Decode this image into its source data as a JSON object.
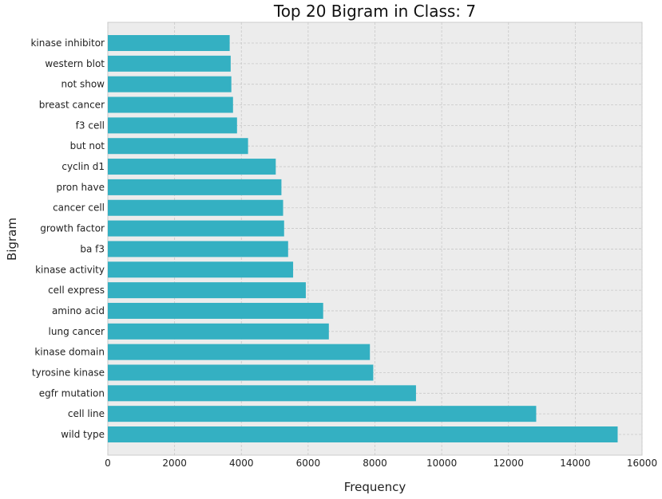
{
  "chart_data": {
    "type": "bar",
    "orientation": "horizontal",
    "title": "Top 20 Bigram in Class: 7",
    "xlabel": "Frequency",
    "ylabel": "Bigram",
    "xlim": [
      0,
      16000
    ],
    "xticks": [
      0,
      2000,
      4000,
      6000,
      8000,
      10000,
      12000,
      14000,
      16000
    ],
    "grid": true,
    "bar_color": "#34b0c2",
    "background_color": "#ececec",
    "grid_color": "#c8c8c8",
    "categories": [
      "kinase inhibitor",
      "western blot",
      "not show",
      "breast cancer",
      "f3 cell",
      "but not",
      "cyclin d1",
      "pron have",
      "cancer cell",
      "growth factor",
      "ba f3",
      "kinase activity",
      "cell express",
      "amino acid",
      "lung cancer",
      "kinase domain",
      "tyrosine kinase",
      "egfr mutation",
      "cell line",
      "wild type"
    ],
    "values": [
      3650,
      3680,
      3700,
      3750,
      3870,
      4200,
      5030,
      5200,
      5250,
      5280,
      5400,
      5550,
      5930,
      6450,
      6620,
      7850,
      7950,
      9230,
      12830,
      15270
    ]
  }
}
